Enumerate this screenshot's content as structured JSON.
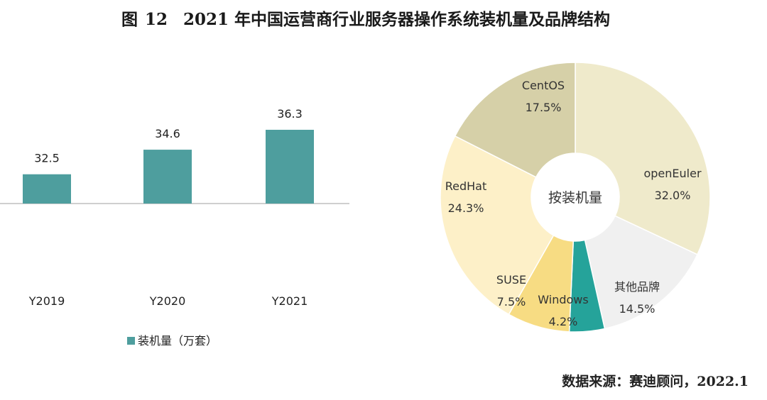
{
  "title": {
    "figure_label": "图",
    "figure_number": "12",
    "text": "2021 年中国运营商行业服务器操作系统装机量及品牌结构"
  },
  "source": "数据来源：赛迪顾问，2022.1",
  "colors": {
    "bar": "#4e9e9e",
    "axis": "#bfbfbf",
    "pie": [
      "#efeacb",
      "#f0f0f0",
      "#25a39a",
      "#f7dc83",
      "#fdf0c8",
      "#d6d0a8"
    ]
  },
  "chart_data": [
    {
      "type": "bar",
      "categories": [
        "Y2019",
        "Y2020",
        "Y2021"
      ],
      "values": [
        32.5,
        34.6,
        36.3
      ],
      "value_labels": [
        "32.5",
        "34.6",
        "36.3"
      ],
      "legend": "装机量（万套）",
      "ylim": [
        30,
        37
      ],
      "grid": false
    },
    {
      "type": "pie",
      "center_label": "按装机量",
      "labels": [
        "openEuler",
        "其他品牌",
        "Windows",
        "SUSE",
        "RedHat",
        "CentOS"
      ],
      "values": [
        32.0,
        14.5,
        4.2,
        7.5,
        24.3,
        17.5
      ],
      "value_labels": [
        "32.0%",
        "14.5%",
        "4.2%",
        "7.5%",
        "24.3%",
        "17.5%"
      ]
    }
  ]
}
